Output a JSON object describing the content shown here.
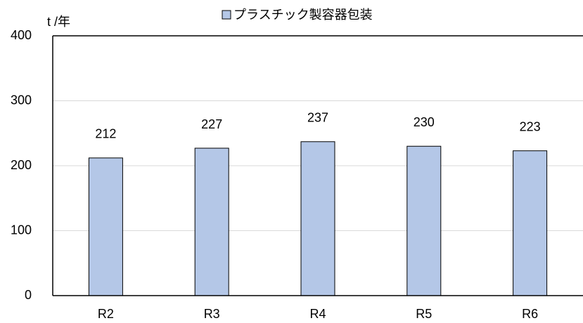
{
  "chart_data": {
    "type": "bar",
    "y_axis_label": "t /年",
    "series": [
      {
        "name": "プラスチック製容器包装",
        "color": "#b4c7e7",
        "values": [
          212,
          227,
          237,
          230,
          223
        ]
      }
    ],
    "categories": [
      "R2",
      "R3",
      "R4",
      "R5",
      "R6"
    ],
    "ylim": [
      0,
      400
    ],
    "yticks": [
      0,
      100,
      200,
      300,
      400
    ],
    "grid": true,
    "legend": "top"
  }
}
